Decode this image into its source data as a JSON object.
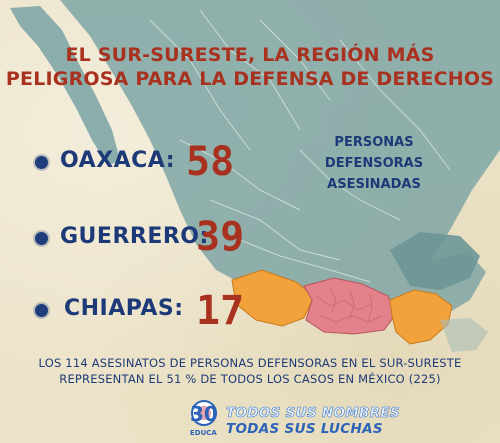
{
  "title": {
    "line1": "EL SUR-SURESTE, LA REGIÓN MÁS",
    "line2": "PELIGROSA PARA LA DEFENSA DE DERECHOS"
  },
  "states": [
    {
      "name": "OAXACA:",
      "count": "58"
    },
    {
      "name": "GUERRERO:",
      "count": "39"
    },
    {
      "name": "CHIAPAS:",
      "count": "17"
    }
  ],
  "legend": {
    "line1": "PERSONAS",
    "line2": "DEFENSORAS",
    "line3": "ASESINADAS"
  },
  "footer": {
    "line1": "LOS 114 ASESINATOS DE PERSONAS DEFENSORAS EN EL SUR-SURESTE",
    "line2": "REPRESENTAN EL 51 % DE TODOS LOS CASOS EN MÉXICO (225)"
  },
  "logo": {
    "number": "30",
    "text": "EDUCA"
  },
  "campaign": {
    "line1": "TODOS SUS NOMBRES",
    "line2": "TODAS SUS LUCHAS"
  },
  "colors": {
    "map_fill": "#7fa6a6",
    "guerrero": "#f2a23a",
    "oaxaca": "#e3828a",
    "chiapas": "#f2a23a",
    "title": "#a8321f",
    "state_text": "#1d3a78"
  }
}
